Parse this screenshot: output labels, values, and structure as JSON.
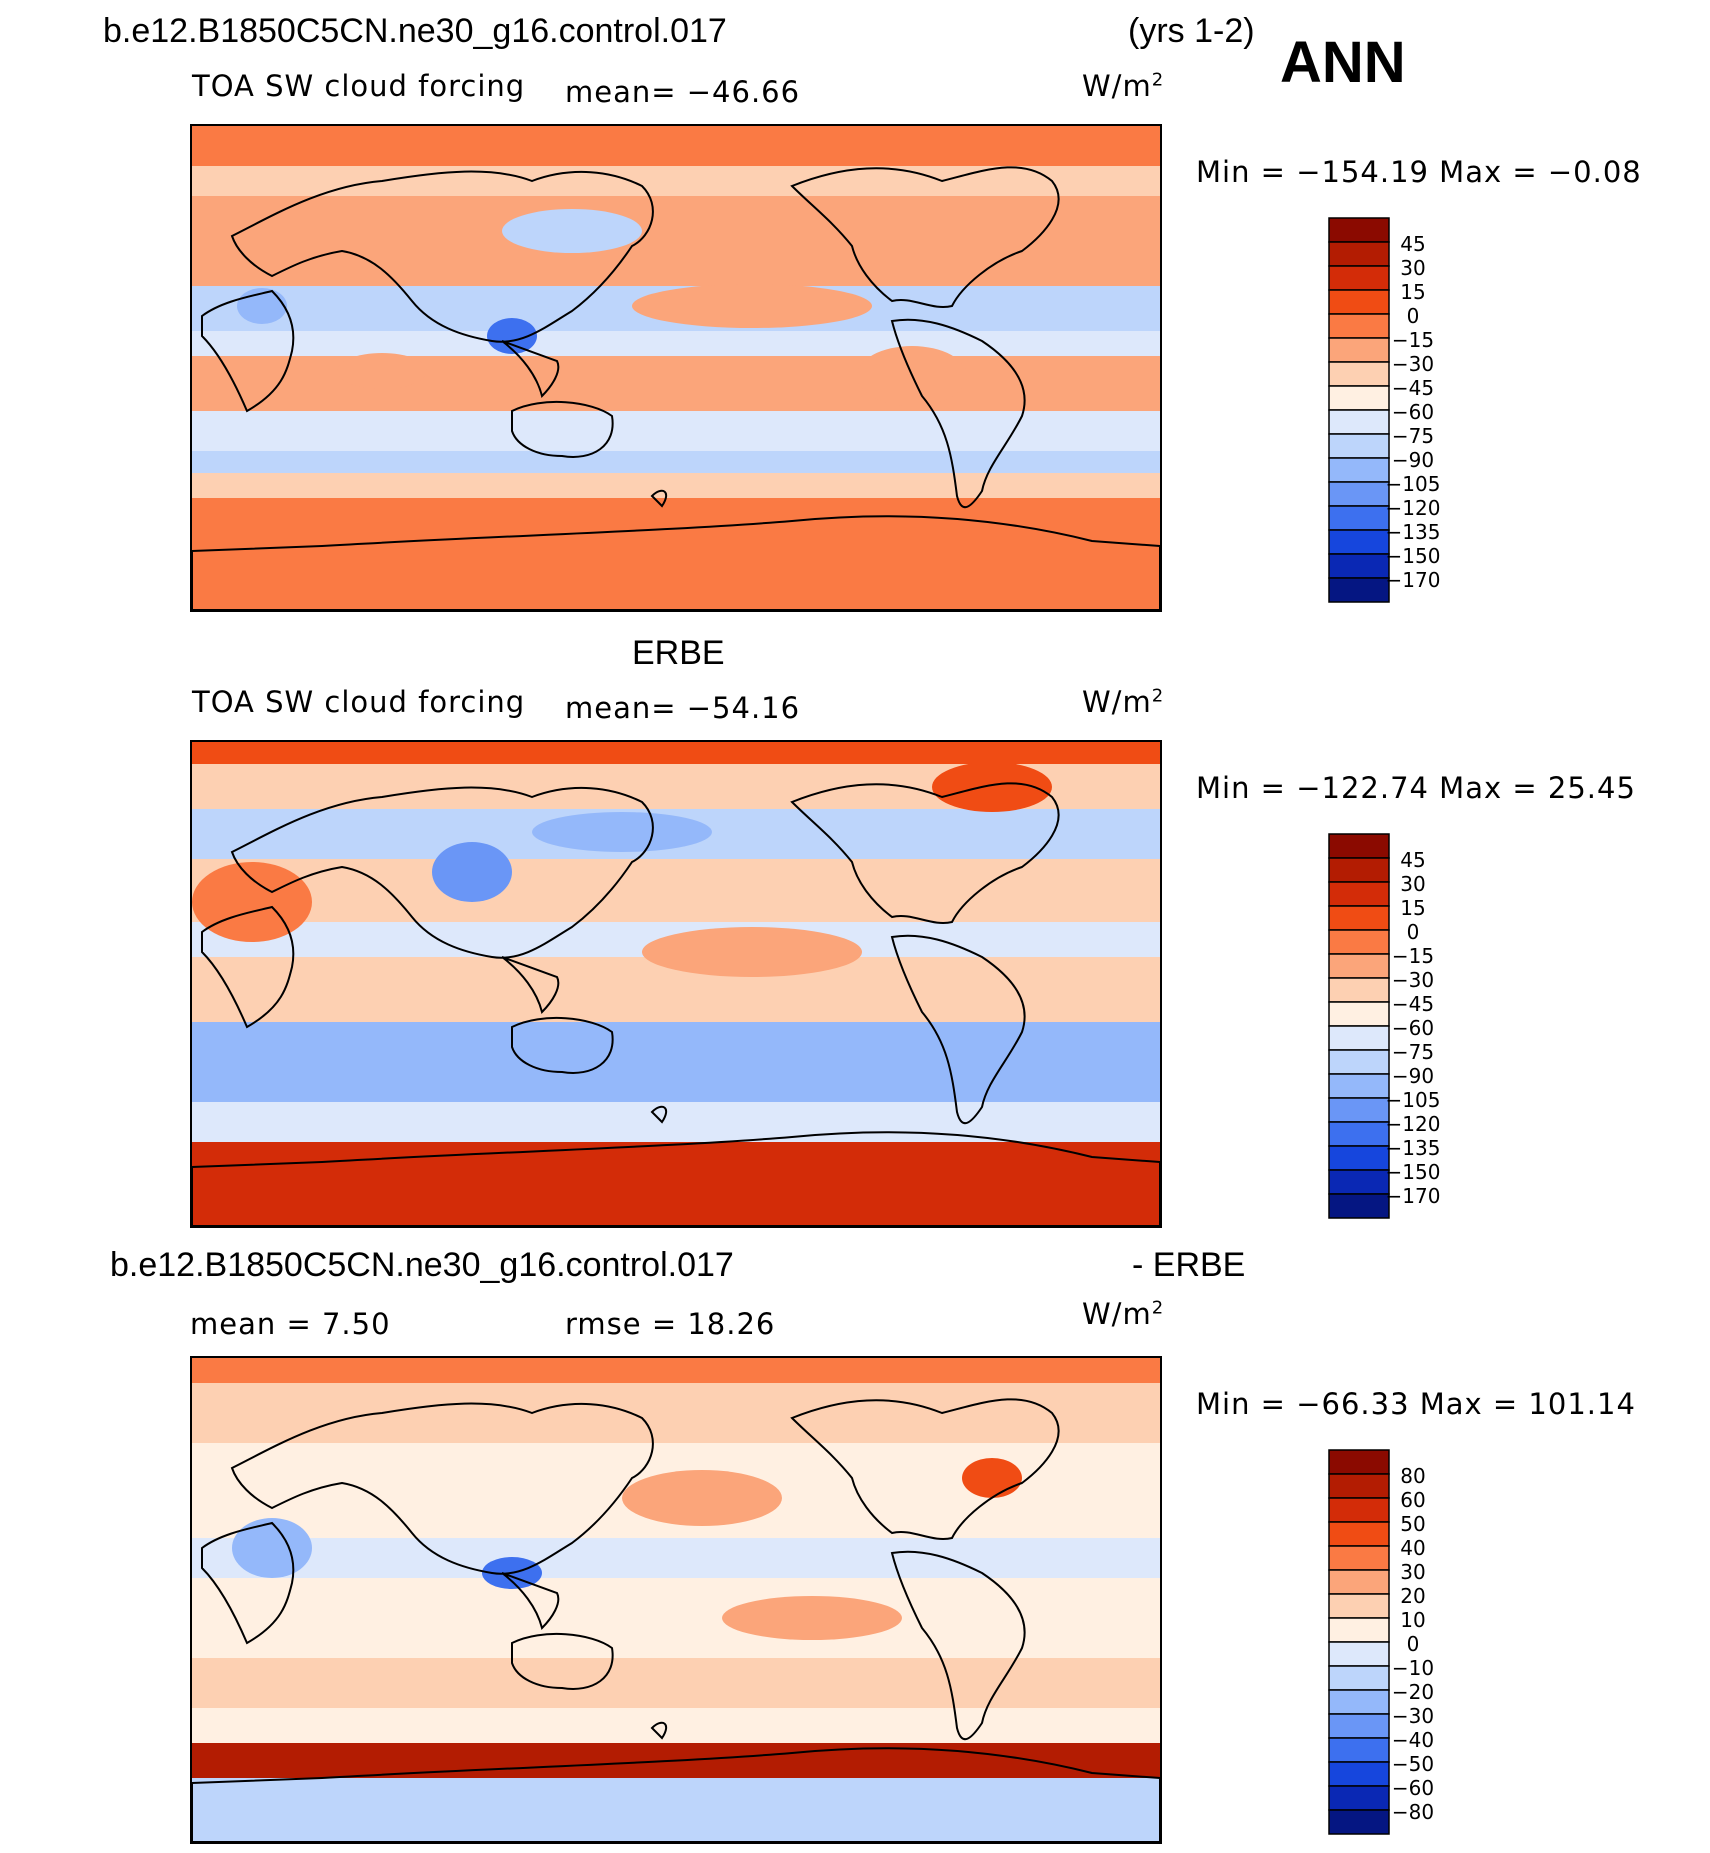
{
  "header": {
    "case_name": "b.e12.B1850C5CN.ne30_g16.control.017",
    "years": "(yrs 1-2)",
    "season": "ANN"
  },
  "chart_data": [
    {
      "type": "heatmap",
      "panel": "model",
      "variable": "TOA SW cloud forcing",
      "mean_label": "mean= −46.66",
      "mean": -46.66,
      "units_text": "W/m",
      "units_sup": "2",
      "minmax_label": "Min = −154.19  Max =   −0.08",
      "min": -154.19,
      "max": -0.08,
      "levels": [
        "45",
        "30",
        "15",
        "0",
        "−15",
        "−30",
        "−45",
        "−60",
        "−75",
        "−90",
        "−105",
        "−120",
        "−135",
        "−150",
        "−170"
      ],
      "colors": [
        "#8b0a00",
        "#b31c02",
        "#d32c08",
        "#f04c14",
        "#fa7a44",
        "#fba57a",
        "#fdd0b2",
        "#fff0e2",
        "#dde8fb",
        "#bdd5fb",
        "#94b8fa",
        "#6a96f6",
        "#3d70ef",
        "#1646dd",
        "#0a28b4",
        "#051682"
      ]
    },
    {
      "type": "heatmap",
      "panel": "obs",
      "title": "ERBE",
      "variable": "TOA SW cloud forcing",
      "mean_label": "mean= −54.16",
      "mean": -54.16,
      "units_text": "W/m",
      "units_sup": "2",
      "minmax_label": "Min = −122.74  Max =   25.45",
      "min": -122.74,
      "max": 25.45,
      "levels": [
        "45",
        "30",
        "15",
        "0",
        "−15",
        "−30",
        "−45",
        "−60",
        "−75",
        "−90",
        "−105",
        "−120",
        "−135",
        "−150",
        "−170"
      ],
      "colors": [
        "#8b0a00",
        "#b31c02",
        "#d32c08",
        "#f04c14",
        "#fa7a44",
        "#fba57a",
        "#fdd0b2",
        "#fff0e2",
        "#dde8fb",
        "#bdd5fb",
        "#94b8fa",
        "#6a96f6",
        "#3d70ef",
        "#1646dd",
        "#0a28b4",
        "#051682"
      ]
    },
    {
      "type": "heatmap",
      "panel": "diff",
      "title_left": "b.e12.B1850C5CN.ne30_g16.control.017",
      "title_right": "- ERBE",
      "mean_label": "mean =    7.50",
      "mean": 7.5,
      "rmse_label": "rmse =   18.26",
      "rmse": 18.26,
      "units_text": "W/m",
      "units_sup": "2",
      "minmax_label": "Min = −66.33  Max = 101.14",
      "min": -66.33,
      "max": 101.14,
      "levels": [
        "80",
        "60",
        "50",
        "40",
        "30",
        "20",
        "10",
        "0",
        "−10",
        "−20",
        "−30",
        "−40",
        "−50",
        "−60",
        "−80"
      ],
      "colors": [
        "#8b0a00",
        "#b31c02",
        "#d32c08",
        "#f04c14",
        "#fa7a44",
        "#fba57a",
        "#fdd0b2",
        "#fff0e2",
        "#dde8fb",
        "#bdd5fb",
        "#94b8fa",
        "#6a96f6",
        "#3d70ef",
        "#1646dd",
        "#0a28b4",
        "#051682"
      ]
    }
  ]
}
